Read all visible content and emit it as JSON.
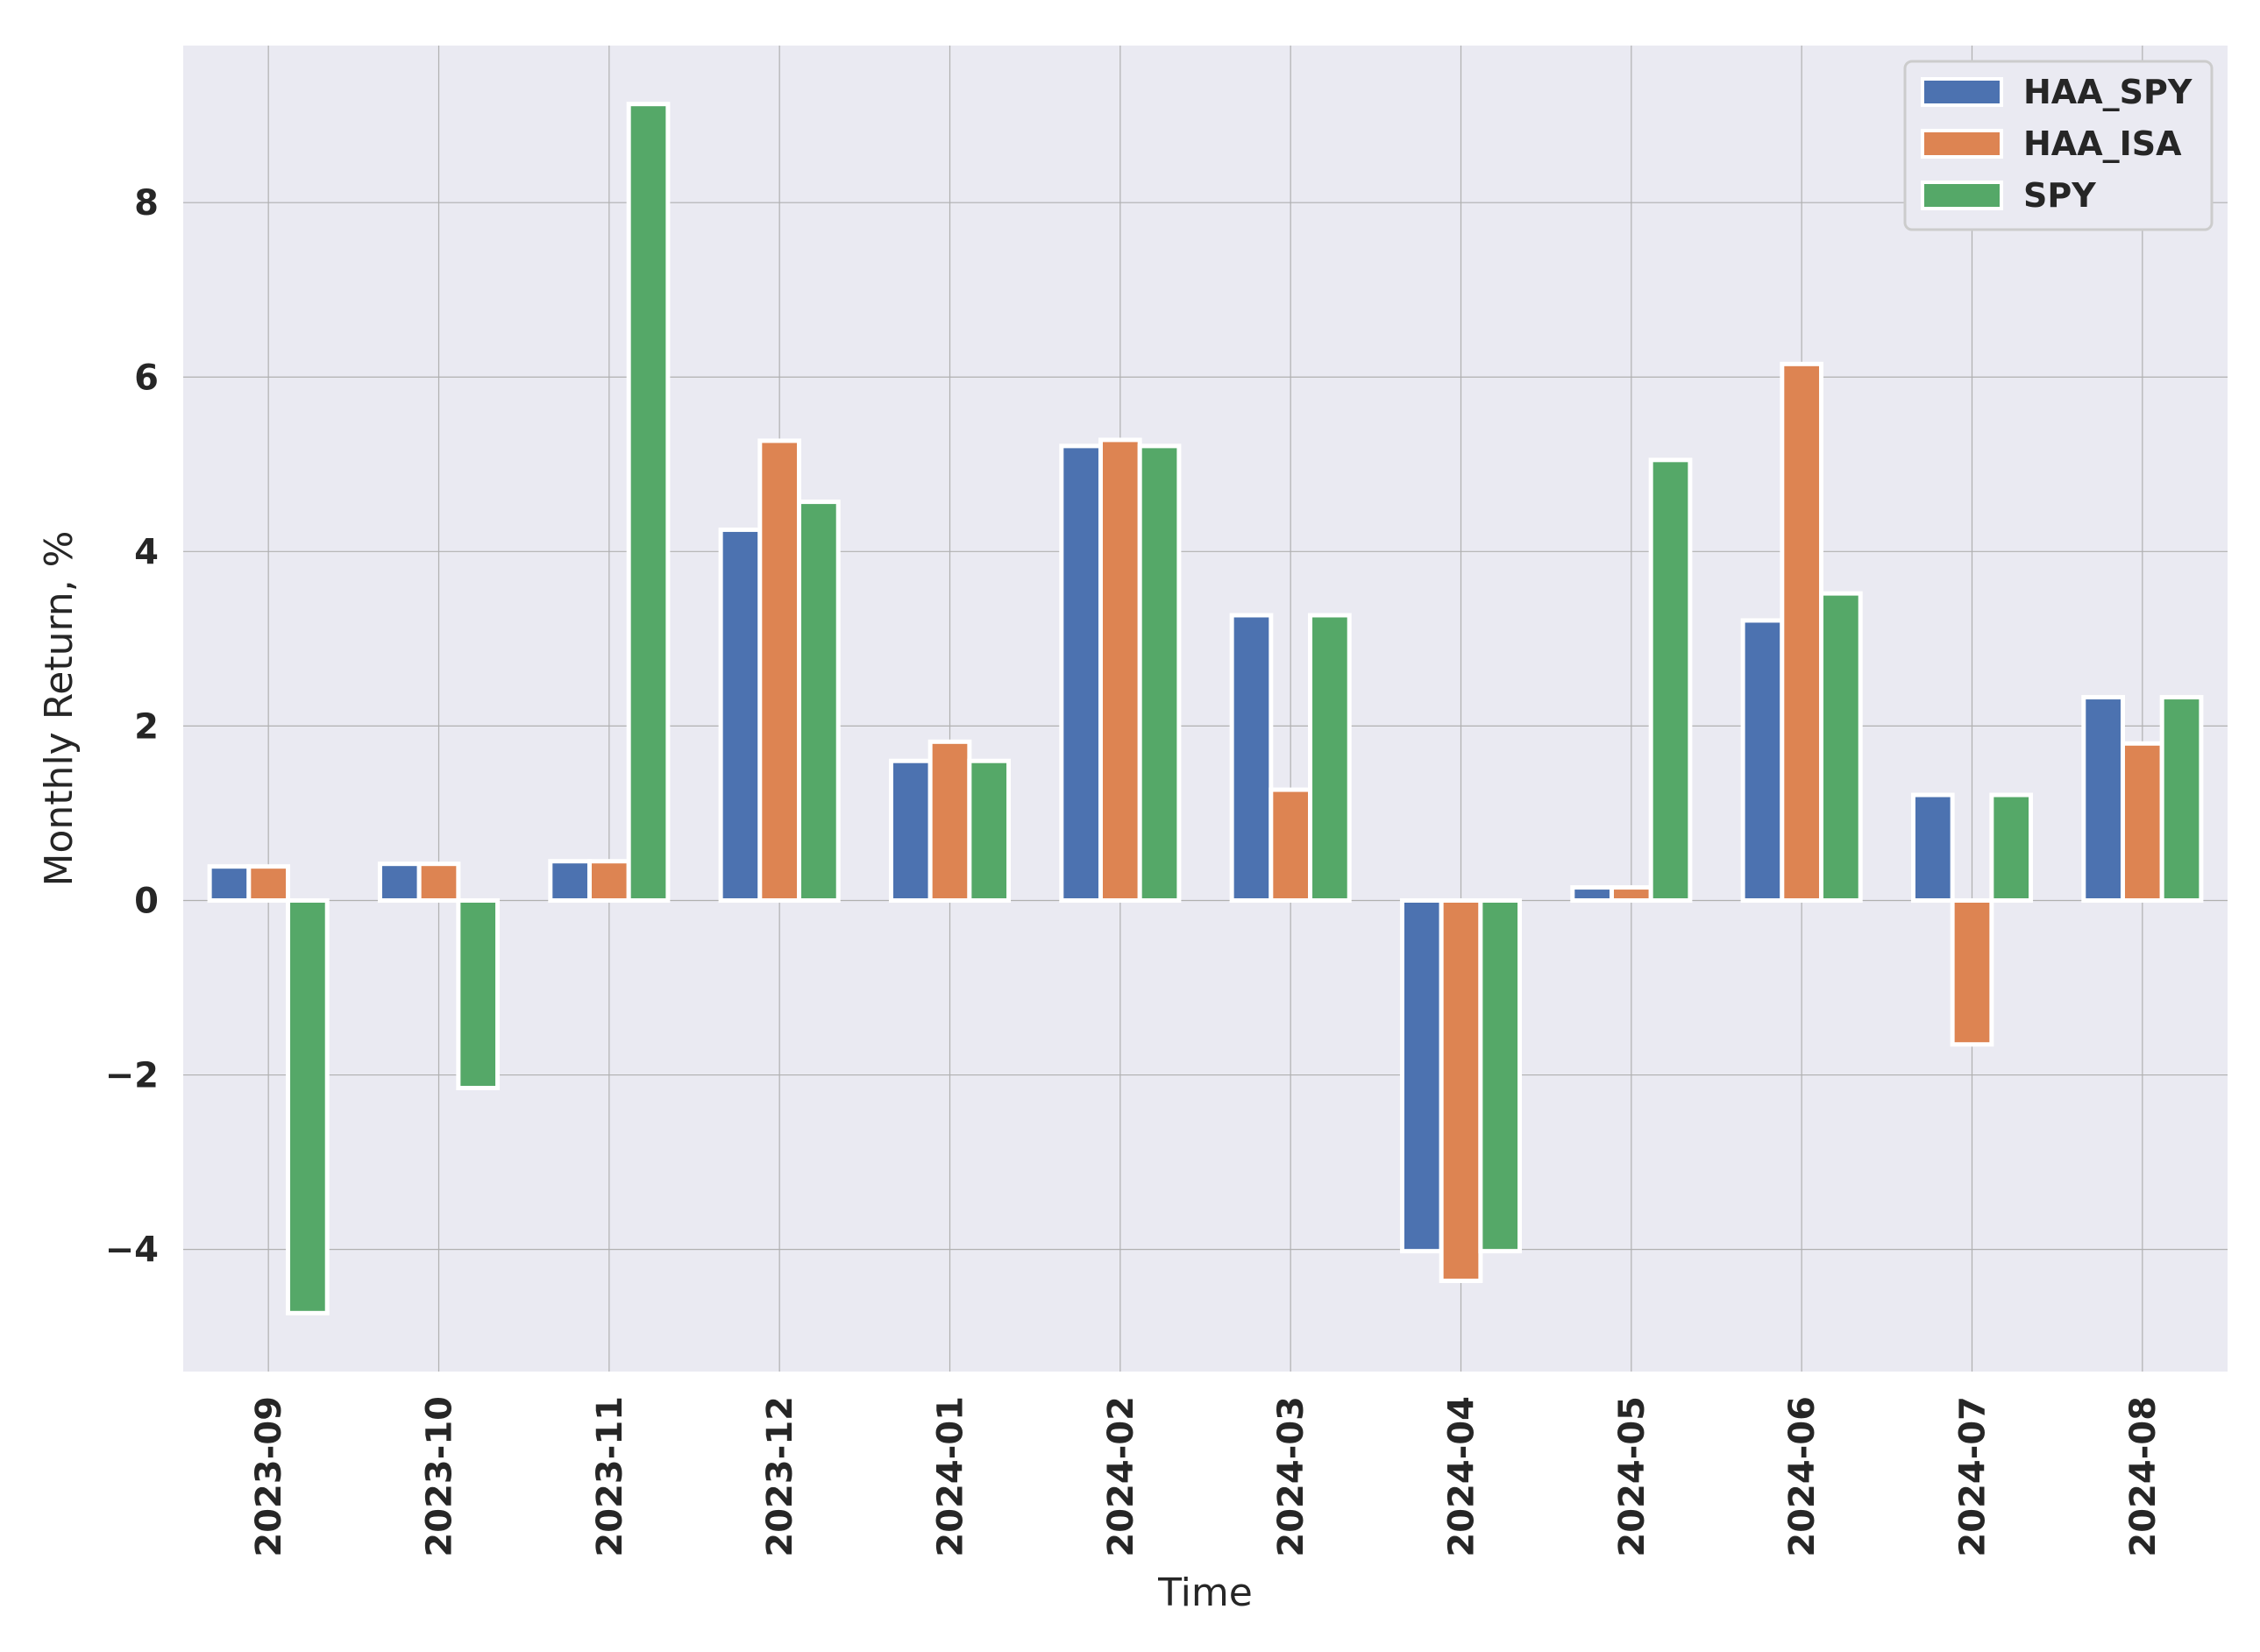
{
  "chart_data": {
    "type": "bar",
    "title": "",
    "xlabel": "Time",
    "ylabel": "Monthly Return, %",
    "categories": [
      "2023-09",
      "2023-10",
      "2023-11",
      "2023-12",
      "2024-01",
      "2024-02",
      "2024-03",
      "2024-04",
      "2024-05",
      "2024-06",
      "2024-07",
      "2024-08"
    ],
    "series": [
      {
        "name": "HAA_SPY",
        "color": "#4c72b0",
        "values": [
          0.39,
          0.42,
          0.45,
          4.25,
          1.6,
          5.21,
          3.27,
          -4.02,
          0.15,
          3.21,
          1.21,
          2.33
        ]
      },
      {
        "name": "HAA_ISA",
        "color": "#dd8452",
        "values": [
          0.39,
          0.42,
          0.45,
          5.27,
          1.82,
          5.28,
          1.27,
          -4.36,
          0.15,
          6.15,
          -1.65,
          1.8
        ]
      },
      {
        "name": "SPY",
        "color": "#55a868",
        "values": [
          -4.73,
          -2.15,
          9.13,
          4.57,
          1.6,
          5.21,
          3.27,
          -4.02,
          5.05,
          3.52,
          1.21,
          2.33
        ]
      }
    ],
    "ylim": [
      -5.4,
      9.8
    ],
    "yticks": [
      -4,
      -2,
      0,
      2,
      4,
      6,
      8
    ],
    "ytick_labels": [
      "−4",
      "−2",
      "0",
      "2",
      "4",
      "6",
      "8"
    ],
    "grid": true,
    "legend_position": "top-right",
    "background": "#eaeaf2",
    "grid_color": "#b0b0b0"
  }
}
